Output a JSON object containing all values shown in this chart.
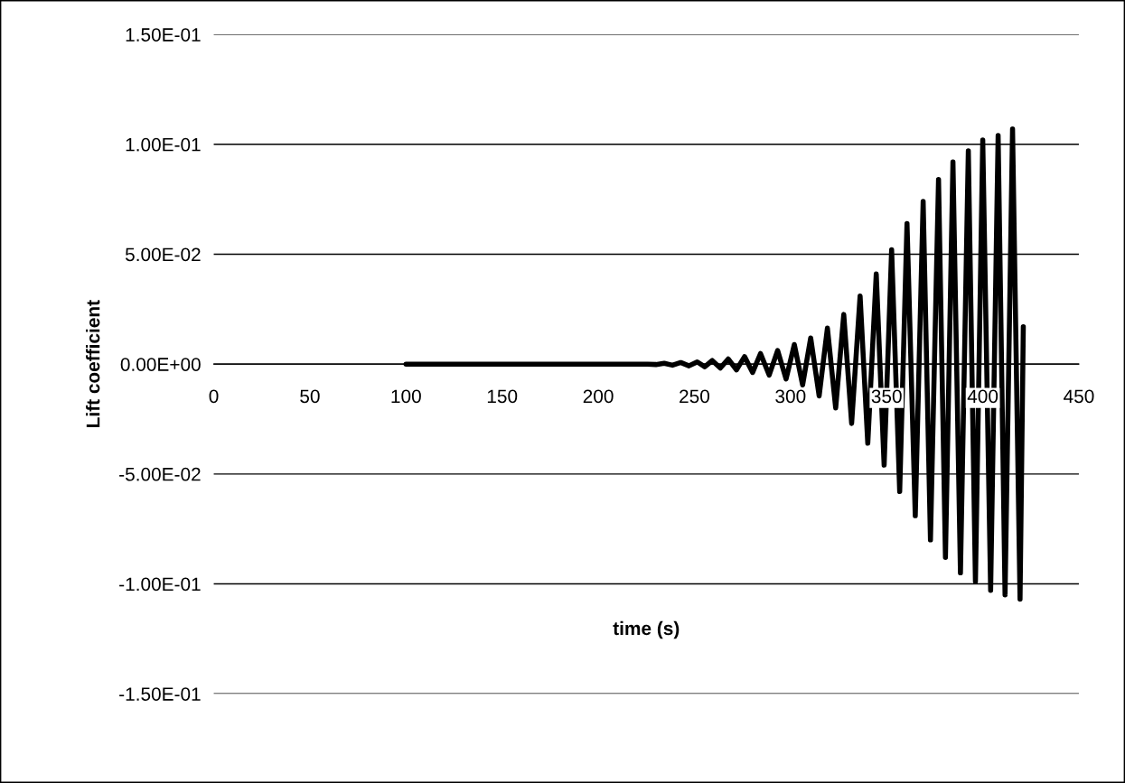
{
  "chart_data": {
    "type": "line",
    "xlabel": "time (s)",
    "ylabel": "Lift coefficient",
    "xlim": [
      0,
      450
    ],
    "xticks": [
      0,
      50,
      100,
      150,
      200,
      250,
      300,
      350,
      400,
      450
    ],
    "ylim": [
      -0.15,
      0.15
    ],
    "yticks": [
      {
        "value": -0.15,
        "label": "-1.50E-01"
      },
      {
        "value": -0.1,
        "label": "-1.00E-01"
      },
      {
        "value": -0.05,
        "label": "-5.00E-02"
      },
      {
        "value": 0,
        "label": "0.00E+00"
      },
      {
        "value": 0.05,
        "label": "5.00E-02"
      },
      {
        "value": 0.1,
        "label": "1.00E-01"
      },
      {
        "value": 0.15,
        "label": "1.50E-01"
      }
    ],
    "grid": "y",
    "marker": "none",
    "line_style": "solid",
    "series": [
      {
        "color": "#000000",
        "x": [
          100,
          221,
          225.7,
          230,
          234.3,
          238.6,
          242.9,
          247.2,
          251.5,
          255.4,
          259.3,
          263.5,
          267.6,
          271.9,
          276.1,
          280.3,
          284.4,
          288.9,
          293.3,
          297.7,
          302.0,
          306.3,
          310.5,
          314.9,
          319.2,
          323.5,
          327.7,
          331.8,
          336.2,
          340.2,
          344.6,
          348.7,
          352.6,
          356.8,
          360.6,
          364.9,
          369.0,
          372.8,
          377.0,
          380.6,
          384.5,
          388.4,
          392.5,
          396.2,
          400.0,
          404.1,
          408.0,
          411.6,
          415.5,
          419.4,
          421.1
        ],
        "values": [
          0,
          0,
          0,
          -0.0002,
          0.0004,
          -0.0005,
          0.0007,
          -0.0008,
          0.001,
          -0.0012,
          0.0016,
          -0.0018,
          0.0023,
          -0.0026,
          0.0034,
          -0.0038,
          0.0048,
          -0.005,
          0.0062,
          -0.0068,
          0.0089,
          -0.0095,
          0.0119,
          -0.0145,
          0.0164,
          -0.02,
          0.0226,
          -0.027,
          0.031,
          -0.036,
          0.041,
          -0.046,
          0.052,
          -0.058,
          0.064,
          -0.069,
          0.074,
          -0.08,
          0.084,
          -0.088,
          0.092,
          -0.095,
          0.097,
          -0.099,
          0.102,
          -0.103,
          0.104,
          -0.105,
          0.107,
          -0.107,
          0.017
        ]
      }
    ]
  }
}
